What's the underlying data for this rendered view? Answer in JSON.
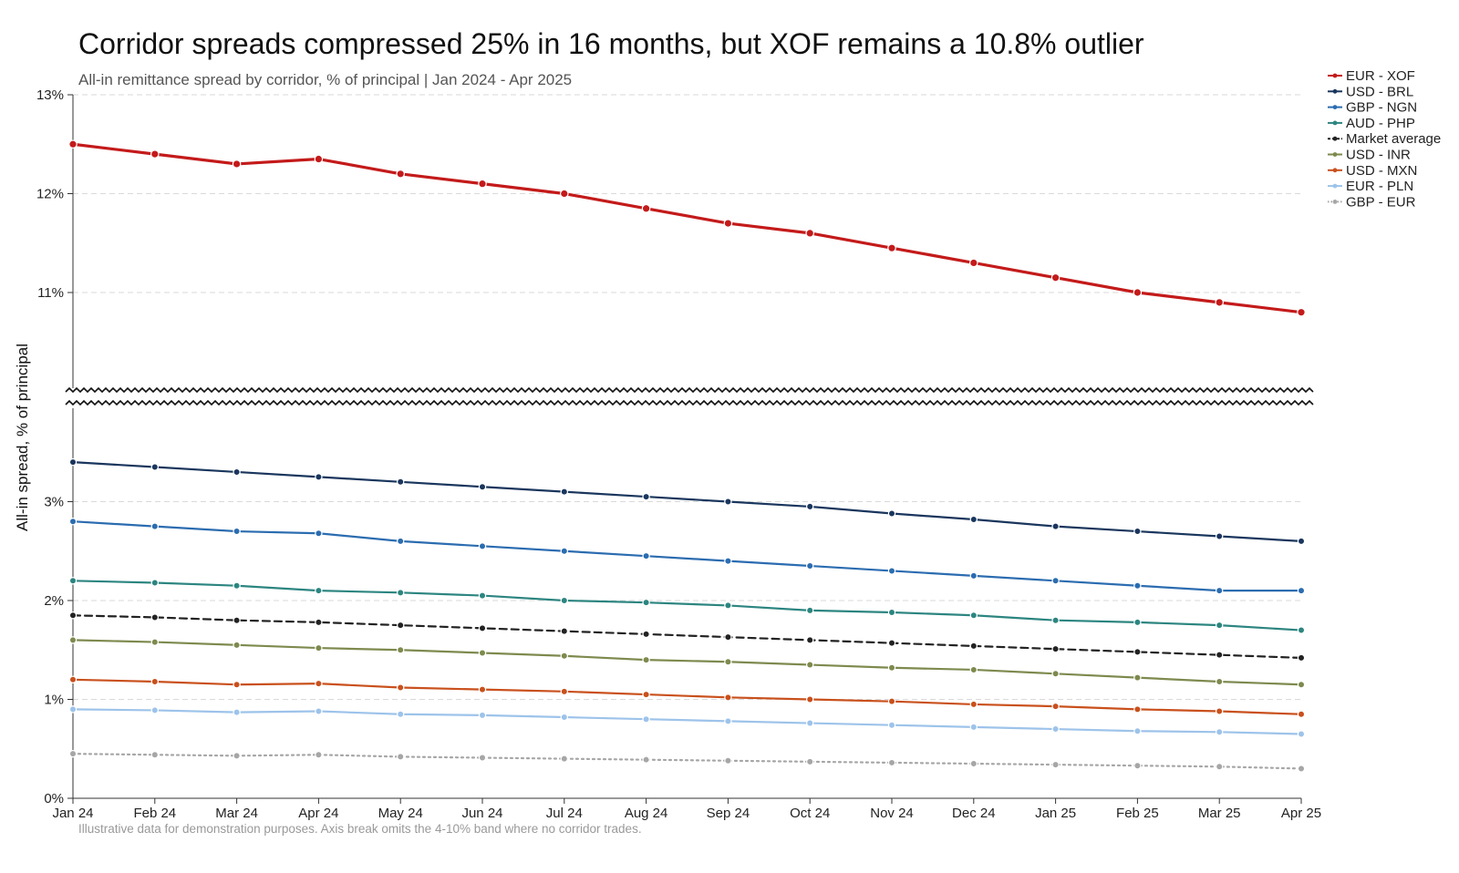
{
  "chart_data": {
    "type": "line",
    "title": "Corridor spreads compressed 25% in 16 months, but XOF remains a 10.8% outlier",
    "subtitle": "All-in remittance spread by corridor, % of principal | Jan 2024 - Apr 2025",
    "ylabel": "All-in spread, % of principal",
    "xlabel": "",
    "footnote": "Illustrative data for demonstration purposes. Axis break omits the 4-10% band where no corridor trades.",
    "categories": [
      "Jan 24",
      "Feb 24",
      "Mar 24",
      "Apr 24",
      "May 24",
      "Jun 24",
      "Jul 24",
      "Aug 24",
      "Sep 24",
      "Oct 24",
      "Nov 24",
      "Dec 24",
      "Jan 25",
      "Feb 25",
      "Mar 25",
      "Apr 25"
    ],
    "y_ticks_lower": [
      "0%",
      "1%",
      "2%",
      "3%"
    ],
    "y_ticks_upper": [
      "11%",
      "12%",
      "13%"
    ],
    "ylim_lower": [
      0,
      4
    ],
    "ylim_upper": [
      10,
      13
    ],
    "axis_break": [
      4,
      10
    ],
    "grid": "horizontal dashed",
    "legend_position": "top-right",
    "series": [
      {
        "name": "EUR - XOF",
        "color": "#c41a1a",
        "style": "solid",
        "thick": true,
        "values": [
          12.5,
          12.4,
          12.3,
          12.35,
          12.2,
          12.1,
          12.0,
          11.85,
          11.7,
          11.6,
          11.45,
          11.3,
          11.15,
          11.0,
          10.9,
          10.8
        ]
      },
      {
        "name": "USD - BRL",
        "color": "#1a365d",
        "style": "solid",
        "values": [
          3.4,
          3.35,
          3.3,
          3.25,
          3.2,
          3.15,
          3.1,
          3.05,
          3.0,
          2.95,
          2.88,
          2.82,
          2.75,
          2.7,
          2.65,
          2.6
        ]
      },
      {
        "name": "GBP - NGN",
        "color": "#2b6cb0",
        "style": "solid",
        "values": [
          2.8,
          2.75,
          2.7,
          2.68,
          2.6,
          2.55,
          2.5,
          2.45,
          2.4,
          2.35,
          2.3,
          2.25,
          2.2,
          2.15,
          2.1,
          2.1
        ]
      },
      {
        "name": "AUD - PHP",
        "color": "#2c8580",
        "style": "solid",
        "values": [
          2.2,
          2.18,
          2.15,
          2.1,
          2.08,
          2.05,
          2.0,
          1.98,
          1.95,
          1.9,
          1.88,
          1.85,
          1.8,
          1.78,
          1.75,
          1.7
        ]
      },
      {
        "name": "Market average",
        "color": "#222222",
        "style": "dashed",
        "values": [
          1.85,
          1.83,
          1.8,
          1.78,
          1.75,
          1.72,
          1.69,
          1.66,
          1.63,
          1.6,
          1.57,
          1.54,
          1.51,
          1.48,
          1.45,
          1.42
        ]
      },
      {
        "name": "USD - INR",
        "color": "#7d8a4e",
        "style": "solid",
        "values": [
          1.6,
          1.58,
          1.55,
          1.52,
          1.5,
          1.47,
          1.44,
          1.4,
          1.38,
          1.35,
          1.32,
          1.3,
          1.26,
          1.22,
          1.18,
          1.15
        ]
      },
      {
        "name": "USD - MXN",
        "color": "#c9501c",
        "style": "solid",
        "values": [
          1.2,
          1.18,
          1.15,
          1.16,
          1.12,
          1.1,
          1.08,
          1.05,
          1.02,
          1.0,
          0.98,
          0.95,
          0.93,
          0.9,
          0.88,
          0.85
        ]
      },
      {
        "name": "EUR - PLN",
        "color": "#9dc3ea",
        "style": "solid",
        "values": [
          0.9,
          0.89,
          0.87,
          0.88,
          0.85,
          0.84,
          0.82,
          0.8,
          0.78,
          0.76,
          0.74,
          0.72,
          0.7,
          0.68,
          0.67,
          0.65
        ]
      },
      {
        "name": "GBP - EUR",
        "color": "#a6a6a6",
        "style": "dotted",
        "values": [
          0.45,
          0.44,
          0.43,
          0.44,
          0.42,
          0.41,
          0.4,
          0.39,
          0.38,
          0.37,
          0.36,
          0.35,
          0.34,
          0.33,
          0.32,
          0.3
        ]
      }
    ]
  }
}
